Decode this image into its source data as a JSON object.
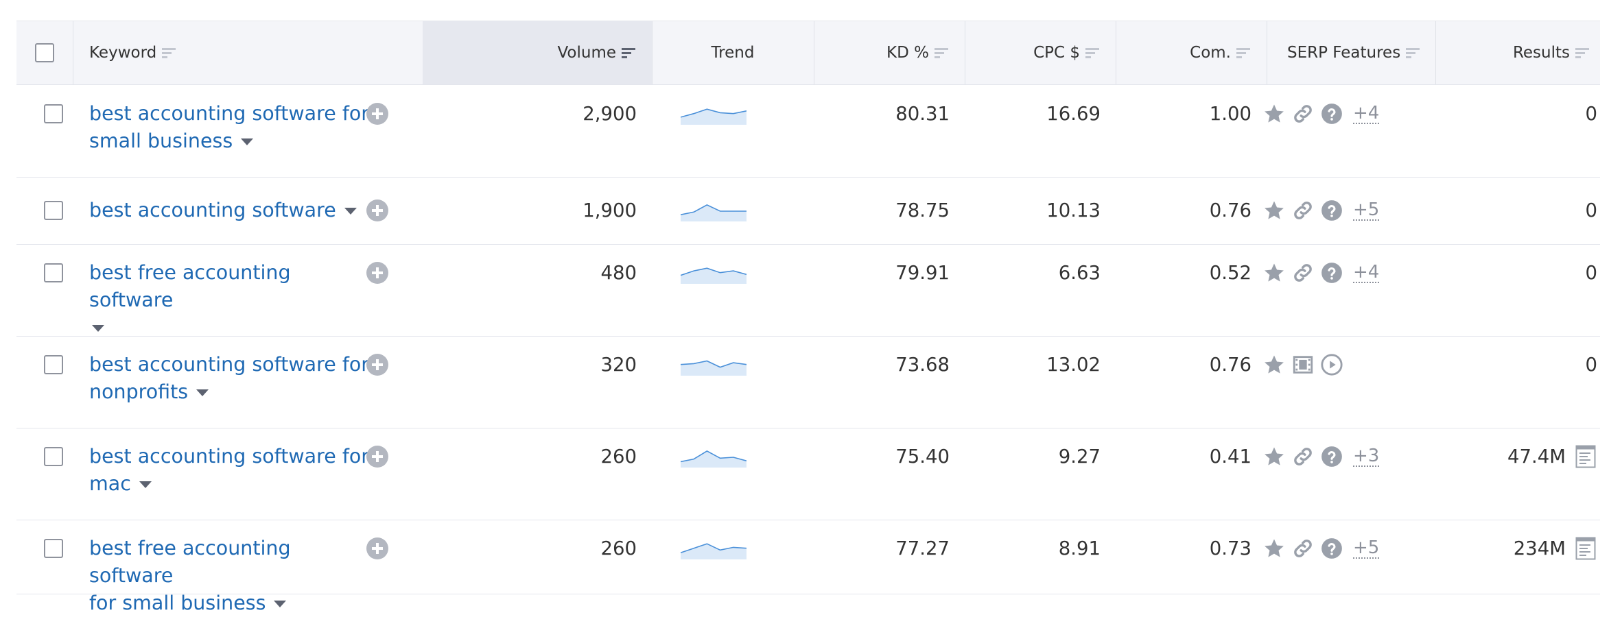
{
  "header": {
    "keyword": "Keyword",
    "volume": "Volume",
    "trend": "Trend",
    "kd": "KD %",
    "cpc": "CPC $",
    "com": "Com.",
    "serp": "SERP Features",
    "results": "Results"
  },
  "rows": [
    {
      "keyword_line1": "best accounting software for",
      "keyword_line2": "small business",
      "volume": "2,900",
      "kd": "80.31",
      "cpc": "16.69",
      "com": "1.00",
      "serp_more": "+4",
      "results": "0",
      "trend": [
        0.35,
        0.55,
        0.8,
        0.6,
        0.55,
        0.7
      ]
    },
    {
      "keyword_line1": "best accounting software",
      "keyword_line2": "",
      "volume": "1,900",
      "kd": "78.75",
      "cpc": "10.13",
      "com": "0.76",
      "serp_more": "+5",
      "results": "0",
      "trend": [
        0.3,
        0.45,
        0.85,
        0.5,
        0.5,
        0.5
      ]
    },
    {
      "keyword_line1": "best free accounting software",
      "keyword_line2": "",
      "volume": "480",
      "kd": "79.91",
      "cpc": "6.63",
      "com": "0.52",
      "serp_more": "+4",
      "results": "0",
      "trend": [
        0.4,
        0.65,
        0.8,
        0.55,
        0.65,
        0.45
      ]
    },
    {
      "keyword_line1": "best accounting software for",
      "keyword_line2": "nonprofits",
      "volume": "320",
      "kd": "73.68",
      "cpc": "13.02",
      "com": "0.76",
      "serp_more": "",
      "results": "0",
      "trend": [
        0.55,
        0.6,
        0.75,
        0.4,
        0.65,
        0.55
      ]
    },
    {
      "keyword_line1": "best accounting software for",
      "keyword_line2": "mac",
      "volume": "260",
      "kd": "75.40",
      "cpc": "9.27",
      "com": "0.41",
      "serp_more": "+3",
      "results": "47.4M",
      "trend": [
        0.25,
        0.4,
        0.85,
        0.45,
        0.5,
        0.3
      ]
    },
    {
      "keyword_line1": "best free accounting software",
      "keyword_line2": "for small business",
      "volume": "260",
      "kd": "77.27",
      "cpc": "8.91",
      "com": "0.73",
      "serp_more": "+5",
      "results": "234M",
      "trend": [
        0.3,
        0.55,
        0.8,
        0.45,
        0.6,
        0.55
      ]
    }
  ]
}
